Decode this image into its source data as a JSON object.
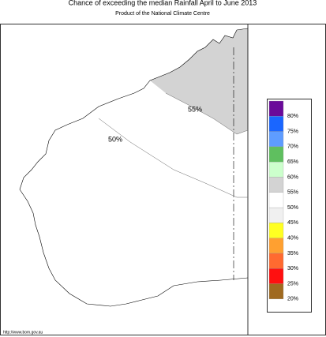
{
  "header": {
    "title": "Chance of exceeding the median Rainfall April to June 2013",
    "subtitle": "Product of the National Climate Centre"
  },
  "map": {
    "labels": [
      "55%",
      "50%"
    ],
    "shaded_color": "#d3d3d3"
  },
  "legend": {
    "items": [
      {
        "label": "80%",
        "color": "#6a0a9a"
      },
      {
        "label": "75%",
        "color": "#1a66ff"
      },
      {
        "label": "70%",
        "color": "#5e9cff"
      },
      {
        "label": "65%",
        "color": "#5fbf5f"
      },
      {
        "label": "60%",
        "color": "#ccffcc"
      },
      {
        "label": "55%",
        "color": "#d3d3d3"
      },
      {
        "label": "50%",
        "color": "#ffffff"
      },
      {
        "label": "45%",
        "color": "#f0f0f0"
      },
      {
        "label": "40%",
        "color": "#ffff22"
      },
      {
        "label": "35%",
        "color": "#ffa030"
      },
      {
        "label": "30%",
        "color": "#ff6a30"
      },
      {
        "label": "25%",
        "color": "#ff1010"
      },
      {
        "label": "20%",
        "color": "#a06a20"
      }
    ]
  },
  "footer": "http://www.bom.gov.au"
}
